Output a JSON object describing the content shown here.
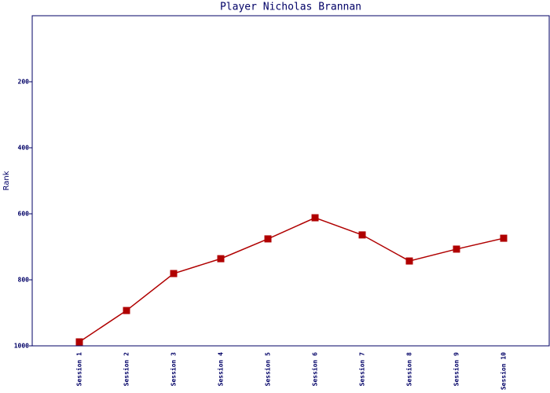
{
  "chart_data": {
    "type": "line",
    "title": "Player Nicholas Brannan",
    "y_label": "Rank",
    "categories": [
      "Session 1",
      "Session 2",
      "Session 3",
      "Session 4",
      "Session 5",
      "Session 6",
      "Session 7",
      "Session 8",
      "Session 9",
      "Session 10"
    ],
    "series": [
      {
        "name": "Rank",
        "color": "#b00000",
        "values": [
          988,
          893,
          781,
          736,
          676,
          612,
          664,
          743,
          707,
          674
        ]
      }
    ],
    "ylim": [
      0,
      1000
    ],
    "yticks": [
      200,
      400,
      600,
      800,
      1000
    ],
    "y_inverted": true,
    "grid": false
  }
}
